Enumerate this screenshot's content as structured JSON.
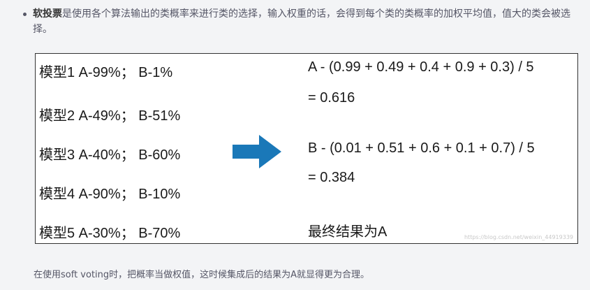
{
  "bullet": {
    "bold": "软投票",
    "text": "是使用各个算法输出的类概率来进行类的选择，输入权重的话，会得到每个类的类概率的加权平均值，值大的类会被选择。"
  },
  "figure": {
    "models": [
      "模型1 A-99%；  B-1%",
      "模型2 A-49%；  B-51%",
      "模型3 A-40%；  B-60%",
      "模型4 A-90%；  B-10%",
      "模型5 A-30%；  B-70%"
    ],
    "calc_a": "A - (0.99 + 0.49 + 0.4 + 0.9 + 0.3) / 5",
    "result_a": "= 0.616",
    "calc_b": "B - (0.01 + 0.51 + 0.6 + 0.1 + 0.7) / 5",
    "result_b": "= 0.384",
    "final": "最终结果为A",
    "arrow_color": "#1a78b8",
    "watermark": "https://blog.csdn.net/weixin_44919339"
  },
  "footer": "在使用soft voting时，把概率当做权值，这时候集成后的结果为A就显得更为合理。"
}
